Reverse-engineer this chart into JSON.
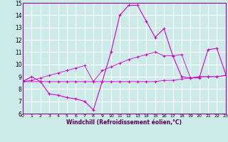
{
  "xlabel": "Windchill (Refroidissement éolien,°C)",
  "xlim": [
    0,
    23
  ],
  "ylim": [
    6,
    15
  ],
  "xticks": [
    0,
    1,
    2,
    3,
    4,
    5,
    6,
    7,
    8,
    9,
    10,
    11,
    12,
    13,
    14,
    15,
    16,
    17,
    18,
    19,
    20,
    21,
    22,
    23
  ],
  "yticks": [
    6,
    7,
    8,
    9,
    10,
    11,
    12,
    13,
    14,
    15
  ],
  "bg_color": "#cceae7",
  "grid_color": "#ffffff",
  "line_color": "#cc00cc",
  "line1_x": [
    0,
    1,
    2,
    3,
    4,
    5,
    6,
    7,
    8,
    9,
    10,
    11,
    12,
    13,
    14,
    15,
    16,
    17,
    18,
    19,
    20,
    21,
    22,
    23
  ],
  "line1_y": [
    8.6,
    9.0,
    8.6,
    7.6,
    7.5,
    7.3,
    7.2,
    7.0,
    6.3,
    8.6,
    11.0,
    14.0,
    14.8,
    14.8,
    13.5,
    12.2,
    12.9,
    10.7,
    9.0,
    8.9,
    8.9,
    11.2,
    11.3,
    9.2
  ],
  "line2_x": [
    0,
    2,
    3,
    4,
    5,
    6,
    7,
    8,
    9,
    10,
    11,
    12,
    13,
    14,
    15,
    16,
    17,
    18,
    19,
    20,
    21,
    22,
    23
  ],
  "line2_y": [
    8.6,
    8.6,
    8.6,
    8.6,
    8.6,
    8.6,
    8.6,
    8.6,
    8.6,
    8.6,
    8.6,
    8.6,
    8.6,
    8.6,
    8.6,
    8.7,
    8.7,
    8.8,
    8.9,
    9.0,
    9.0,
    9.0,
    9.1
  ],
  "line3_x": [
    0,
    1,
    2,
    3,
    4,
    5,
    6,
    7,
    8,
    9,
    10,
    11,
    12,
    13,
    14,
    15,
    16,
    17,
    18,
    19,
    20,
    21,
    22,
    23
  ],
  "line3_y": [
    8.6,
    8.7,
    8.9,
    9.1,
    9.3,
    9.5,
    9.7,
    9.9,
    8.6,
    9.5,
    9.8,
    10.1,
    10.4,
    10.6,
    10.8,
    11.0,
    10.7,
    10.7,
    10.8,
    8.9,
    9.0,
    9.0,
    9.0,
    9.1
  ]
}
